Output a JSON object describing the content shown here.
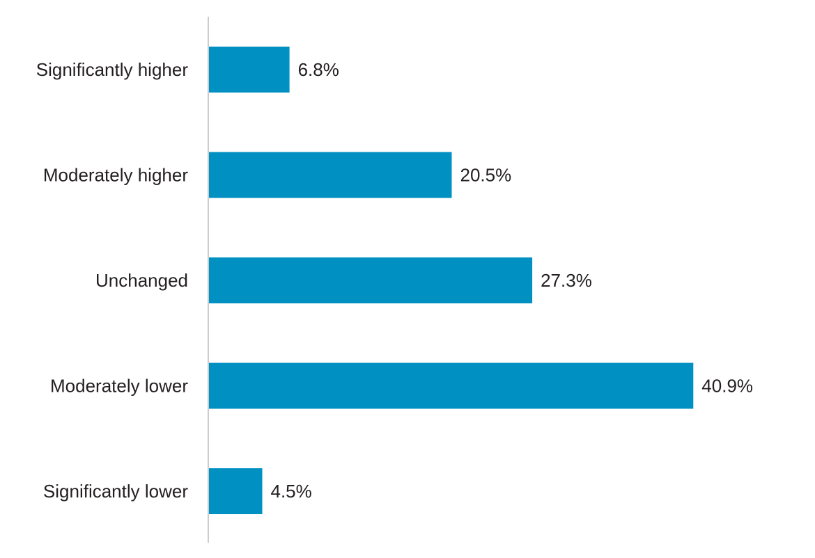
{
  "chart_data": {
    "type": "bar",
    "orientation": "horizontal",
    "categories": [
      "Significantly higher",
      "Moderately higher",
      "Unchanged",
      "Moderately lower",
      "Significantly lower"
    ],
    "values": [
      6.8,
      20.5,
      27.3,
      40.9,
      4.5
    ],
    "value_labels": [
      "6.8%",
      "20.5%",
      "27.3%",
      "40.9%",
      "4.5%"
    ],
    "unit": "%",
    "title": "",
    "xlabel": "",
    "ylabel": "",
    "grid": false,
    "legend": "none",
    "bar_color": "#0090c1",
    "axis_color": "#cccccc",
    "text_color": "#231f20"
  }
}
